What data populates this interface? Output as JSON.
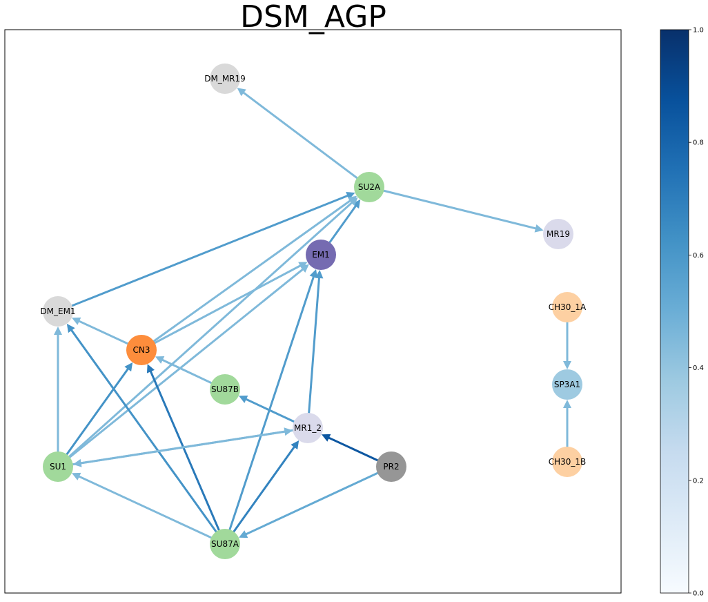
{
  "title": "DSM_AGP",
  "nodes": [
    {
      "id": "DM_MR19",
      "label": "DM_MR19",
      "color": "#d9d9d9"
    },
    {
      "id": "SU2A",
      "label": "SU2A",
      "color": "#a1d99b"
    },
    {
      "id": "MR19",
      "label": "MR19",
      "color": "#dadaeb"
    },
    {
      "id": "EM1",
      "label": "EM1",
      "color": "#756bb1"
    },
    {
      "id": "CH30_1A",
      "label": "CH30_1A",
      "color": "#fdd0a2"
    },
    {
      "id": "DM_EM1",
      "label": "DM_EM1",
      "color": "#d9d9d9"
    },
    {
      "id": "CN3",
      "label": "CN3",
      "color": "#fd8d3c"
    },
    {
      "id": "SP3A1",
      "label": "SP3A1",
      "color": "#9ecae1"
    },
    {
      "id": "SU87B",
      "label": "SU87B",
      "color": "#a1d99b"
    },
    {
      "id": "MR1_2",
      "label": "MR1_2",
      "color": "#dadaeb"
    },
    {
      "id": "SU1",
      "label": "SU1",
      "color": "#a1d99b"
    },
    {
      "id": "PR2",
      "label": "PR2",
      "color": "#969696"
    },
    {
      "id": "CH30_1B",
      "label": "CH30_1B",
      "color": "#fdd0a2"
    },
    {
      "id": "SU87A",
      "label": "SU87A",
      "color": "#a1d99b"
    }
  ],
  "edges": [
    {
      "source": "SU2A",
      "target": "DM_MR19",
      "weight": 0.45
    },
    {
      "source": "SU2A",
      "target": "MR19",
      "weight": 0.45
    },
    {
      "source": "DM_EM1",
      "target": "SU2A",
      "weight": 0.58
    },
    {
      "source": "EM1",
      "target": "SU2A",
      "weight": 0.58
    },
    {
      "source": "CN3",
      "target": "SU2A",
      "weight": 0.45
    },
    {
      "source": "SU1",
      "target": "SU2A",
      "weight": 0.45
    },
    {
      "source": "CN3",
      "target": "EM1",
      "weight": 0.45
    },
    {
      "source": "SU1",
      "target": "EM1",
      "weight": 0.45
    },
    {
      "source": "SU87A",
      "target": "EM1",
      "weight": 0.58
    },
    {
      "source": "MR1_2",
      "target": "EM1",
      "weight": 0.58
    },
    {
      "source": "CN3",
      "target": "DM_EM1",
      "weight": 0.45
    },
    {
      "source": "SU1",
      "target": "DM_EM1",
      "weight": 0.45
    },
    {
      "source": "SU87A",
      "target": "DM_EM1",
      "weight": 0.62
    },
    {
      "source": "SU1",
      "target": "CN3",
      "weight": 0.62
    },
    {
      "source": "SU87A",
      "target": "CN3",
      "weight": 0.72
    },
    {
      "source": "SU87B",
      "target": "CN3",
      "weight": 0.45
    },
    {
      "source": "MR1_2",
      "target": "SU87B",
      "weight": 0.58
    },
    {
      "source": "SU1",
      "target": "MR1_2",
      "weight": 0.45
    },
    {
      "source": "MR1_2",
      "target": "SU1",
      "weight": 0.45
    },
    {
      "source": "SU87A",
      "target": "SU1",
      "weight": 0.45
    },
    {
      "source": "PR2",
      "target": "MR1_2",
      "weight": 0.85
    },
    {
      "source": "SU87A",
      "target": "MR1_2",
      "weight": 0.68
    },
    {
      "source": "PR2",
      "target": "SU87A",
      "weight": 0.52
    },
    {
      "source": "CH30_1A",
      "target": "SP3A1",
      "weight": 0.45
    },
    {
      "source": "CH30_1B",
      "target": "SP3A1",
      "weight": 0.45
    }
  ],
  "colorbar": {
    "cmap": "Blues",
    "range": [
      0.0,
      1.0
    ],
    "stops": [
      "#f7fbff",
      "#deebf7",
      "#c6dbef",
      "#9ecae1",
      "#6baed6",
      "#4292c6",
      "#2171b5",
      "#08519c",
      "#08306b"
    ],
    "ticks": [
      "0.0",
      "0.2",
      "0.4",
      "0.6",
      "0.8",
      "1.0"
    ]
  }
}
